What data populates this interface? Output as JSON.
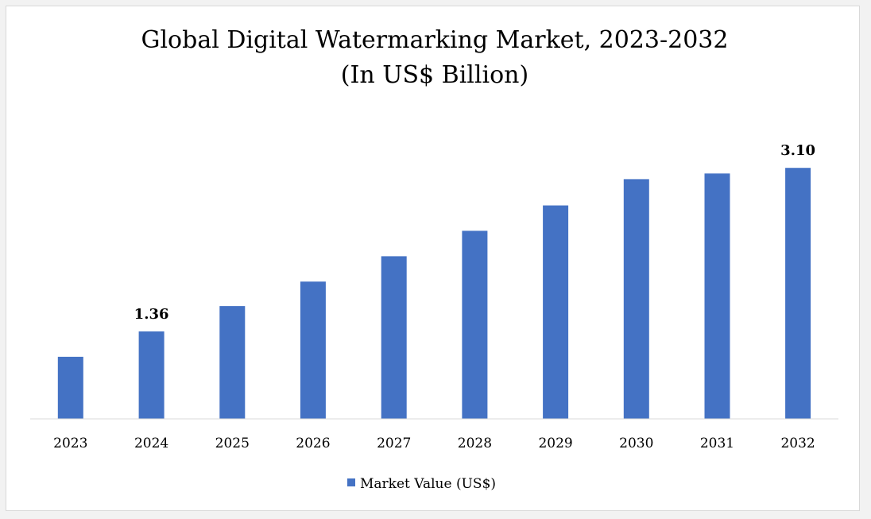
{
  "chart_data": {
    "type": "bar",
    "title": "Global Digital Watermarking Market, 2023-2032",
    "subtitle": "(In US$ Billion)",
    "categories": [
      "2023",
      "2024",
      "2025",
      "2026",
      "2027",
      "2028",
      "2029",
      "2030",
      "2031",
      "2032"
    ],
    "series": [
      {
        "name": "Market Value (US$)",
        "values": [
          1.09,
          1.36,
          1.63,
          1.89,
          2.16,
          2.43,
          2.7,
          2.98,
          3.04,
          3.1
        ],
        "color": "#4472c4"
      }
    ],
    "data_labels": [
      {
        "category": "2024",
        "text": "1.36"
      },
      {
        "category": "2032",
        "text": "3.10"
      }
    ],
    "xlabel": "",
    "ylabel": "",
    "ylim": [
      0.43,
      3.33
    ],
    "grid": false,
    "legend": "bottom"
  }
}
